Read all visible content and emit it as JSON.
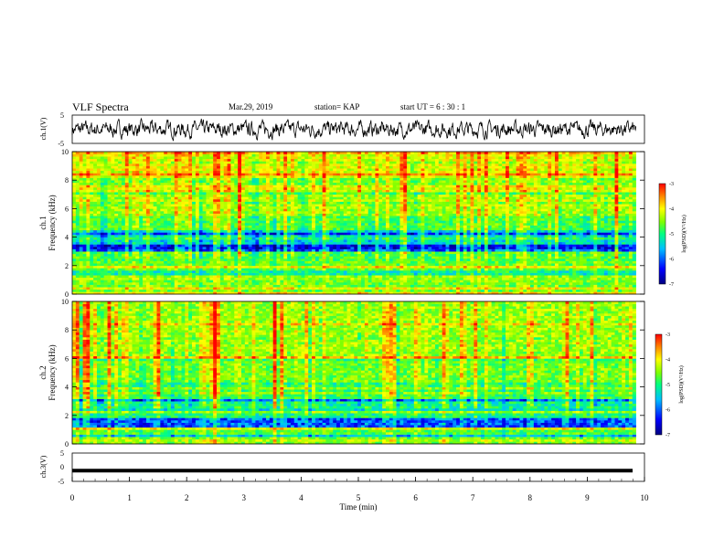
{
  "header": {
    "title": "VLF Spectra",
    "date": "Mar.29, 2019",
    "station": "station= KAP",
    "start": "start  UT =  6 : 30 : 1"
  },
  "colors": {
    "cmap": [
      "#000080",
      "#0000ff",
      "#00bfff",
      "#00ff80",
      "#80ff00",
      "#ffff00",
      "#ff8000",
      "#ff0000"
    ],
    "trace": "#000000"
  },
  "chart_data": [
    {
      "type": "line",
      "panel": "ch1-waveform",
      "ylabel": "ch.1(V)",
      "ylim": [
        -5,
        5
      ],
      "yticks": [
        "5",
        "-5"
      ],
      "xlim": [
        0,
        10
      ],
      "description_values": {
        "mean": 0,
        "amplitude_approx": 2.5
      }
    },
    {
      "type": "heatmap",
      "panel": "ch1-spectrogram",
      "ylabel": [
        "ch.1",
        "Frequency  (kHz)"
      ],
      "ylim": [
        0,
        10
      ],
      "yticks": [
        "0",
        "2",
        "4",
        "6",
        "8",
        "10"
      ],
      "xlim": [
        0,
        9.85
      ],
      "colorbar": {
        "label": "log(PSD)(V²/Hz)",
        "range": [
          -7,
          -3
        ],
        "ticks": [
          "-3",
          "-4",
          "-5",
          "-6",
          "-7"
        ]
      },
      "bands_khz": [
        {
          "f0": 0.0,
          "f1": 0.5,
          "level": -4.2
        },
        {
          "f0": 0.5,
          "f1": 1.0,
          "level": -4.8
        },
        {
          "f0": 1.0,
          "f1": 1.8,
          "level": -5.4
        },
        {
          "f0": 1.8,
          "f1": 2.3,
          "level": -4.9
        },
        {
          "f0": 2.3,
          "f1": 3.0,
          "level": -5.0
        },
        {
          "f0": 3.0,
          "f1": 3.5,
          "level": -6.5
        },
        {
          "f0": 3.5,
          "f1": 4.5,
          "level": -5.6
        },
        {
          "f0": 4.5,
          "f1": 5.5,
          "level": -5.0
        },
        {
          "f0": 5.5,
          "f1": 7.0,
          "level": -4.6
        },
        {
          "f0": 7.0,
          "f1": 10.0,
          "level": -4.3
        }
      ]
    },
    {
      "type": "heatmap",
      "panel": "ch2-spectrogram",
      "ylabel": [
        "ch.2",
        "Frequency  (kHz)"
      ],
      "ylim": [
        0,
        10
      ],
      "yticks": [
        "0",
        "2",
        "4",
        "6",
        "8",
        "10"
      ],
      "xlim": [
        0,
        9.85
      ],
      "colorbar": {
        "label": "log(PSD)(V²/Hz)",
        "range": [
          -7,
          -3
        ],
        "ticks": [
          "-3",
          "-4",
          "-5",
          "-6",
          "-7"
        ]
      },
      "bands_khz": [
        {
          "f0": 0.0,
          "f1": 0.5,
          "level": -4.5
        },
        {
          "f0": 0.5,
          "f1": 1.2,
          "level": -5.0
        },
        {
          "f0": 1.2,
          "f1": 1.9,
          "level": -6.2
        },
        {
          "f0": 1.9,
          "f1": 2.6,
          "level": -5.3
        },
        {
          "f0": 2.6,
          "f1": 3.2,
          "level": -5.4
        },
        {
          "f0": 3.2,
          "f1": 4.3,
          "level": -5.1
        },
        {
          "f0": 4.3,
          "f1": 6.0,
          "level": -4.8
        },
        {
          "f0": 6.0,
          "f1": 10.0,
          "level": -4.6
        }
      ]
    },
    {
      "type": "line",
      "panel": "ch3-waveform",
      "ylabel": "ch.3(V)",
      "ylim": [
        -5,
        5
      ],
      "yticks": [
        "5",
        "0",
        "-5"
      ],
      "xlim": [
        0,
        10
      ],
      "level": -1.2,
      "xlabel": "Time  (min)",
      "xticks": [
        "0",
        "1",
        "2",
        "3",
        "4",
        "5",
        "6",
        "7",
        "8",
        "9",
        "10"
      ]
    }
  ]
}
